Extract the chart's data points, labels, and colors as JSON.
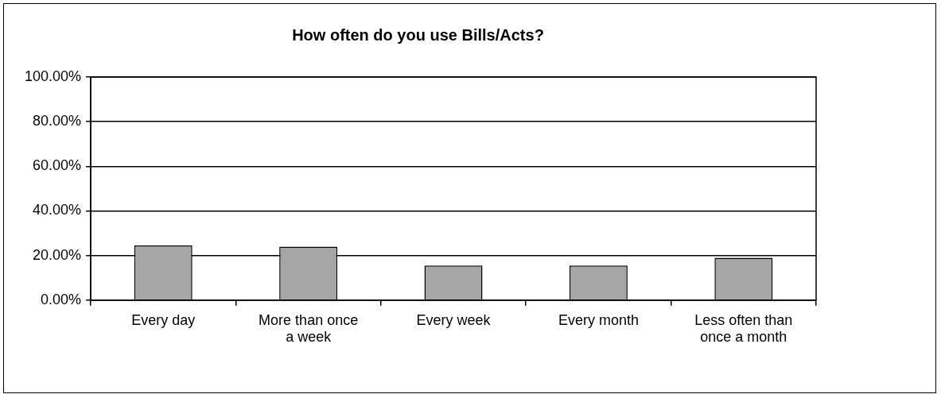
{
  "chart_data": {
    "type": "bar",
    "title": "How often do you use Bills/Acts?",
    "categories": [
      "Every day",
      "More than once a week",
      "Every week",
      "Every month",
      "Less often than once a month"
    ],
    "values": [
      24.5,
      24,
      15.5,
      15.5,
      19
    ],
    "color": "#a6a6a6",
    "ylim": [
      0,
      100
    ],
    "yticks": [
      {
        "value": 0,
        "label": "0.00%"
      },
      {
        "value": 20,
        "label": "20.00%"
      },
      {
        "value": 40,
        "label": "40.00%"
      },
      {
        "value": 60,
        "label": "60.00%"
      },
      {
        "value": 80,
        "label": "80.00%"
      },
      {
        "value": 100,
        "label": "100.00%"
      }
    ],
    "grid": "y",
    "legend": false
  }
}
